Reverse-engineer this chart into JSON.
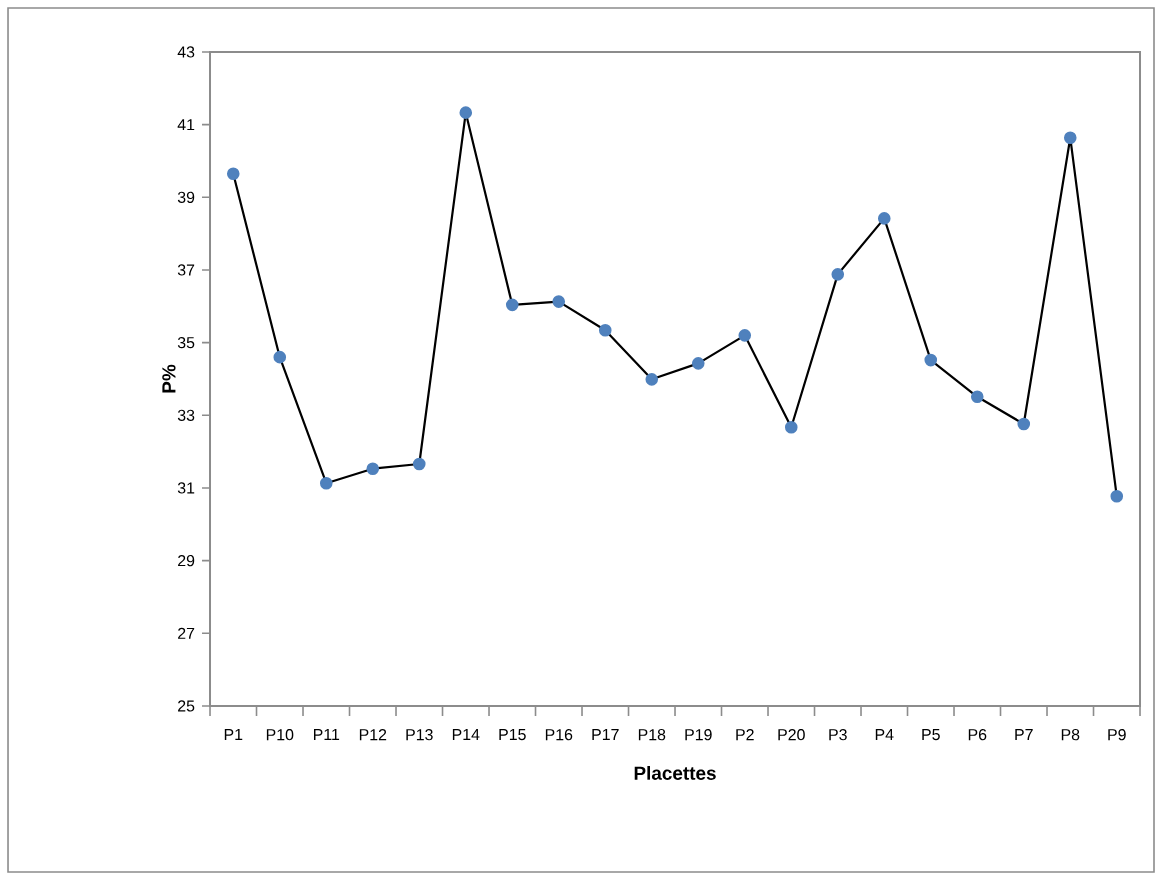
{
  "chart_data": {
    "type": "line",
    "xlabel": "Placettes",
    "ylabel": "P%",
    "categories": [
      "P1",
      "P10",
      "P11",
      "P12",
      "P13",
      "P14",
      "P15",
      "P16",
      "P17",
      "P18",
      "P19",
      "P2",
      "P20",
      "P3",
      "P4",
      "P5",
      "P6",
      "P7",
      "P8",
      "P9"
    ],
    "series": [
      {
        "color": "#4f81bd",
        "values": [
          39.65,
          34.6,
          31.13,
          31.53,
          31.66,
          41.33,
          36.04,
          36.13,
          35.34,
          33.99,
          34.43,
          35.2,
          32.67,
          36.88,
          38.42,
          34.52,
          33.51,
          32.76,
          40.64,
          30.77
        ]
      }
    ],
    "ylim": [
      25,
      43
    ],
    "yticks": [
      25,
      27,
      29,
      31,
      33,
      35,
      37,
      39,
      41,
      43
    ],
    "grid": false,
    "legend": false,
    "marker": "circle",
    "line_style": "solid"
  }
}
